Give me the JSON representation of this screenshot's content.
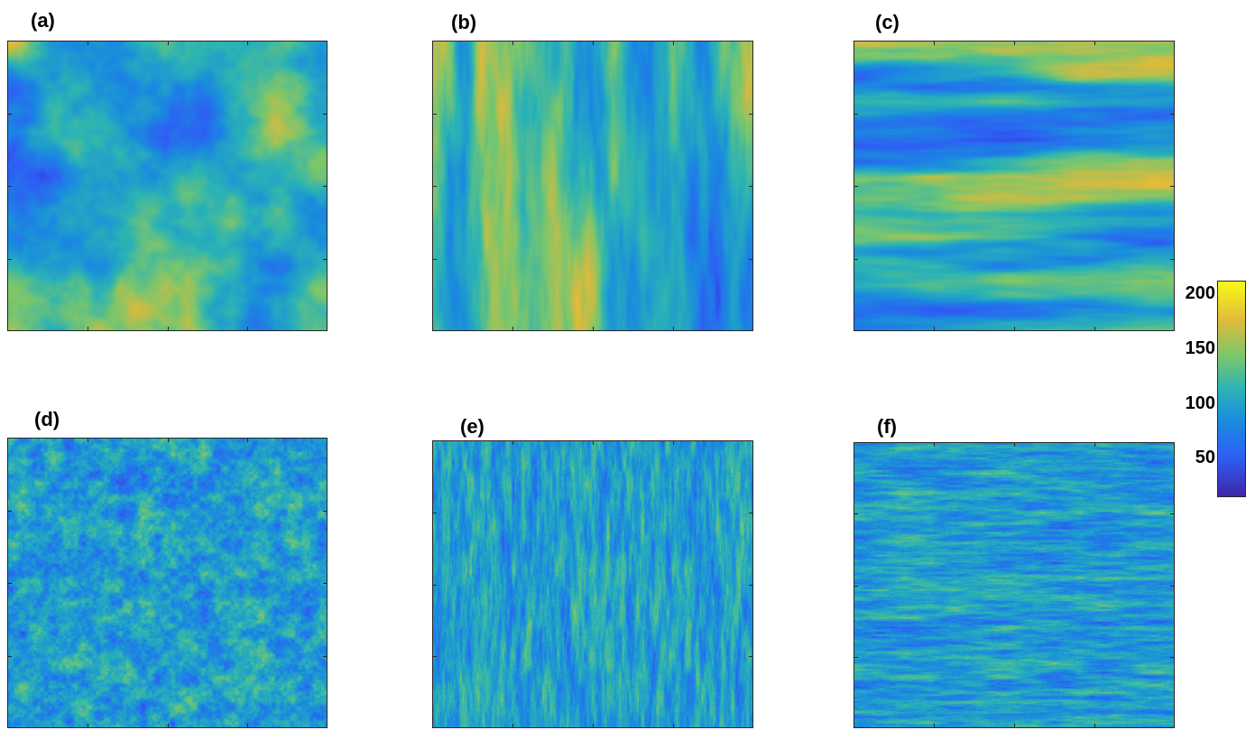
{
  "panels": [
    {
      "label": "(a)",
      "style": "isotropic-coarse"
    },
    {
      "label": "(b)",
      "style": "vertical-coarse"
    },
    {
      "label": "(c)",
      "style": "horizontal-coarse"
    },
    {
      "label": "(d)",
      "style": "isotropic-fine"
    },
    {
      "label": "(e)",
      "style": "vertical-fine"
    },
    {
      "label": "(f)",
      "style": "horizontal-fine"
    }
  ],
  "colorbar": {
    "ticks": [
      "200",
      "150",
      "100",
      "50"
    ],
    "colormap": [
      "#3e26a8",
      "#2e5ef5",
      "#1a8cde",
      "#2bb3b5",
      "#7bc66c",
      "#e0ba3b",
      "#f9fb15"
    ]
  }
}
